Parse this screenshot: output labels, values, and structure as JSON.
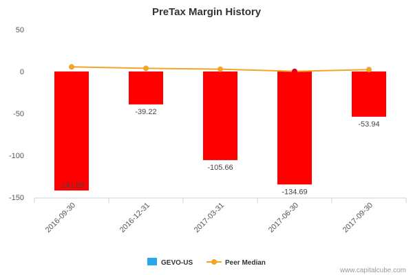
{
  "chart_data": {
    "type": "bar",
    "title": "PreTax Margin History",
    "categories": [
      "2016-09-30",
      "2016-12-31",
      "2017-03-31",
      "2017-06-30",
      "2017-09-30"
    ],
    "series": [
      {
        "name": "GEVO-US",
        "kind": "bar",
        "values": [
          -141.89,
          -39.22,
          -105.66,
          -134.69,
          -53.94
        ],
        "labels": [
          "-141.89",
          "-39.22",
          "-105.66",
          "-134.69",
          "-53.94"
        ],
        "color": "#ff0000",
        "legend_color": "#2aa7ea"
      },
      {
        "name": "Peer Median",
        "kind": "line",
        "values": [
          5.5,
          3.8,
          2.8,
          0.2,
          2.3
        ],
        "color": "#f4a326",
        "point_colors": [
          "#f4a326",
          "#f4a326",
          "#f4a326",
          "#e8001c",
          "#f4a326"
        ]
      }
    ],
    "ylim": [
      -150,
      50
    ],
    "yticks": [
      50,
      0,
      -50,
      -100,
      -150
    ],
    "grid": false,
    "legend": "bottom-center",
    "xlabel": "",
    "ylabel": ""
  },
  "credit": "www.capitalcube.com"
}
